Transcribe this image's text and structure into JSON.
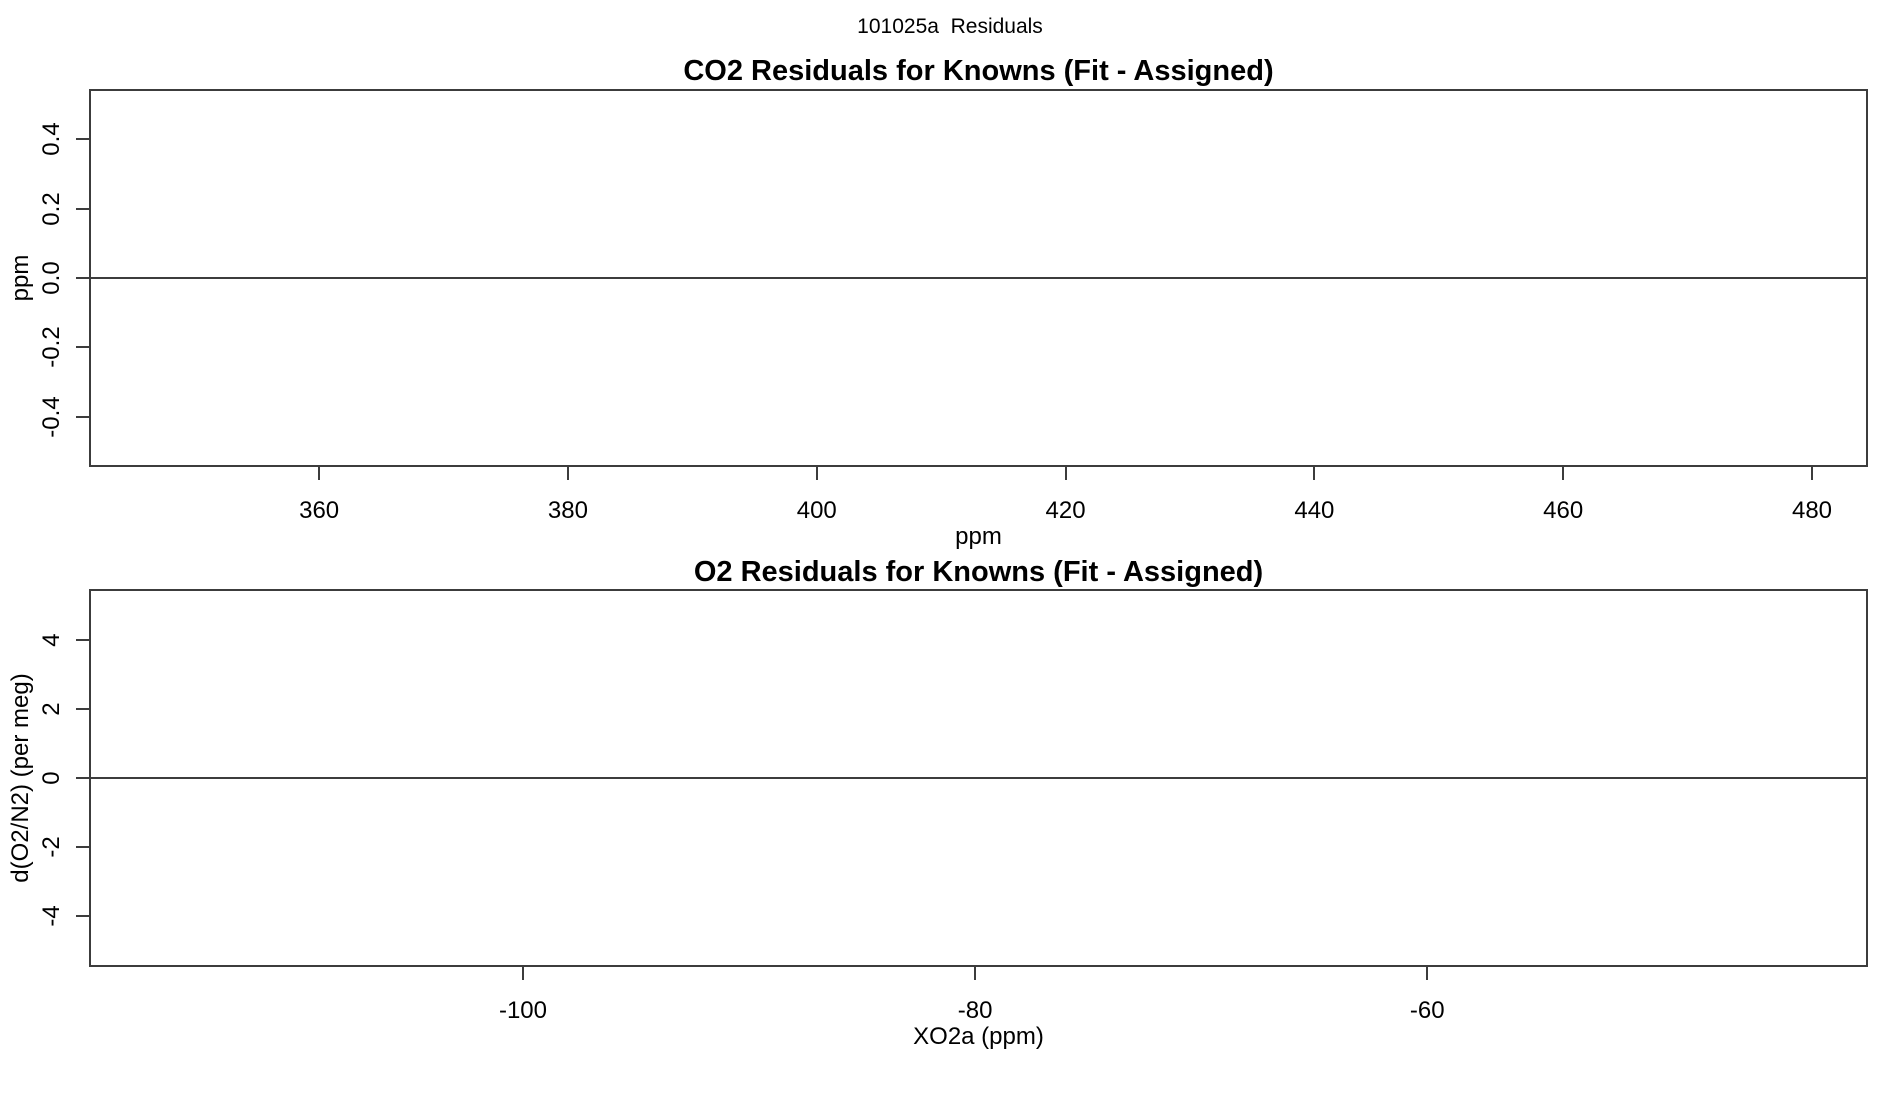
{
  "figure": {
    "title": "101025a  Residuals",
    "background_color": "#ffffff",
    "text_color": "#000000",
    "axis_color": "#3c3c3c",
    "layout": "two stacked empty residual panels, white background, no grid, no legend"
  },
  "chart_data": [
    {
      "type": "scatter",
      "title": "CO2 Residuals for Knowns (Fit - Assigned)",
      "xlabel": "ppm",
      "ylabel": "ppm",
      "xlim": [
        341.5,
        484.5
      ],
      "ylim": [
        -0.545,
        0.545
      ],
      "xticks": [
        360,
        380,
        400,
        420,
        440,
        460,
        480
      ],
      "xtick_labels": [
        "360",
        "380",
        "400",
        "420",
        "440",
        "460",
        "480"
      ],
      "yticks": [
        -0.4,
        -0.2,
        0,
        0.2,
        0.4
      ],
      "ytick_labels": [
        "-0.4",
        "-0.2",
        "0.0",
        "0.2",
        "0.4"
      ],
      "reference_line_y": 0,
      "series": [],
      "grid": false,
      "legend": null,
      "note": "plot area is empty - only the horizontal reference line at y=0 is drawn"
    },
    {
      "type": "scatter",
      "title": "O2 Residuals for Knowns (Fit - Assigned)",
      "xlabel": "XO2a (ppm)",
      "ylabel": "d(O2/N2) (per meg)",
      "xlim": [
        -119.2,
        -40.5
      ],
      "ylim": [
        -5.46,
        5.46
      ],
      "xticks": [
        -100,
        -80,
        -60
      ],
      "xtick_labels": [
        "-100",
        "-80",
        "-60"
      ],
      "yticks": [
        -4,
        -2,
        0,
        2,
        4
      ],
      "ytick_labels": [
        "-4",
        "-2",
        "0",
        "2",
        "4"
      ],
      "reference_line_y": 0,
      "series": [],
      "grid": false,
      "legend": null,
      "note": "plot area is empty - only the horizontal reference line at y=0 is drawn"
    }
  ]
}
